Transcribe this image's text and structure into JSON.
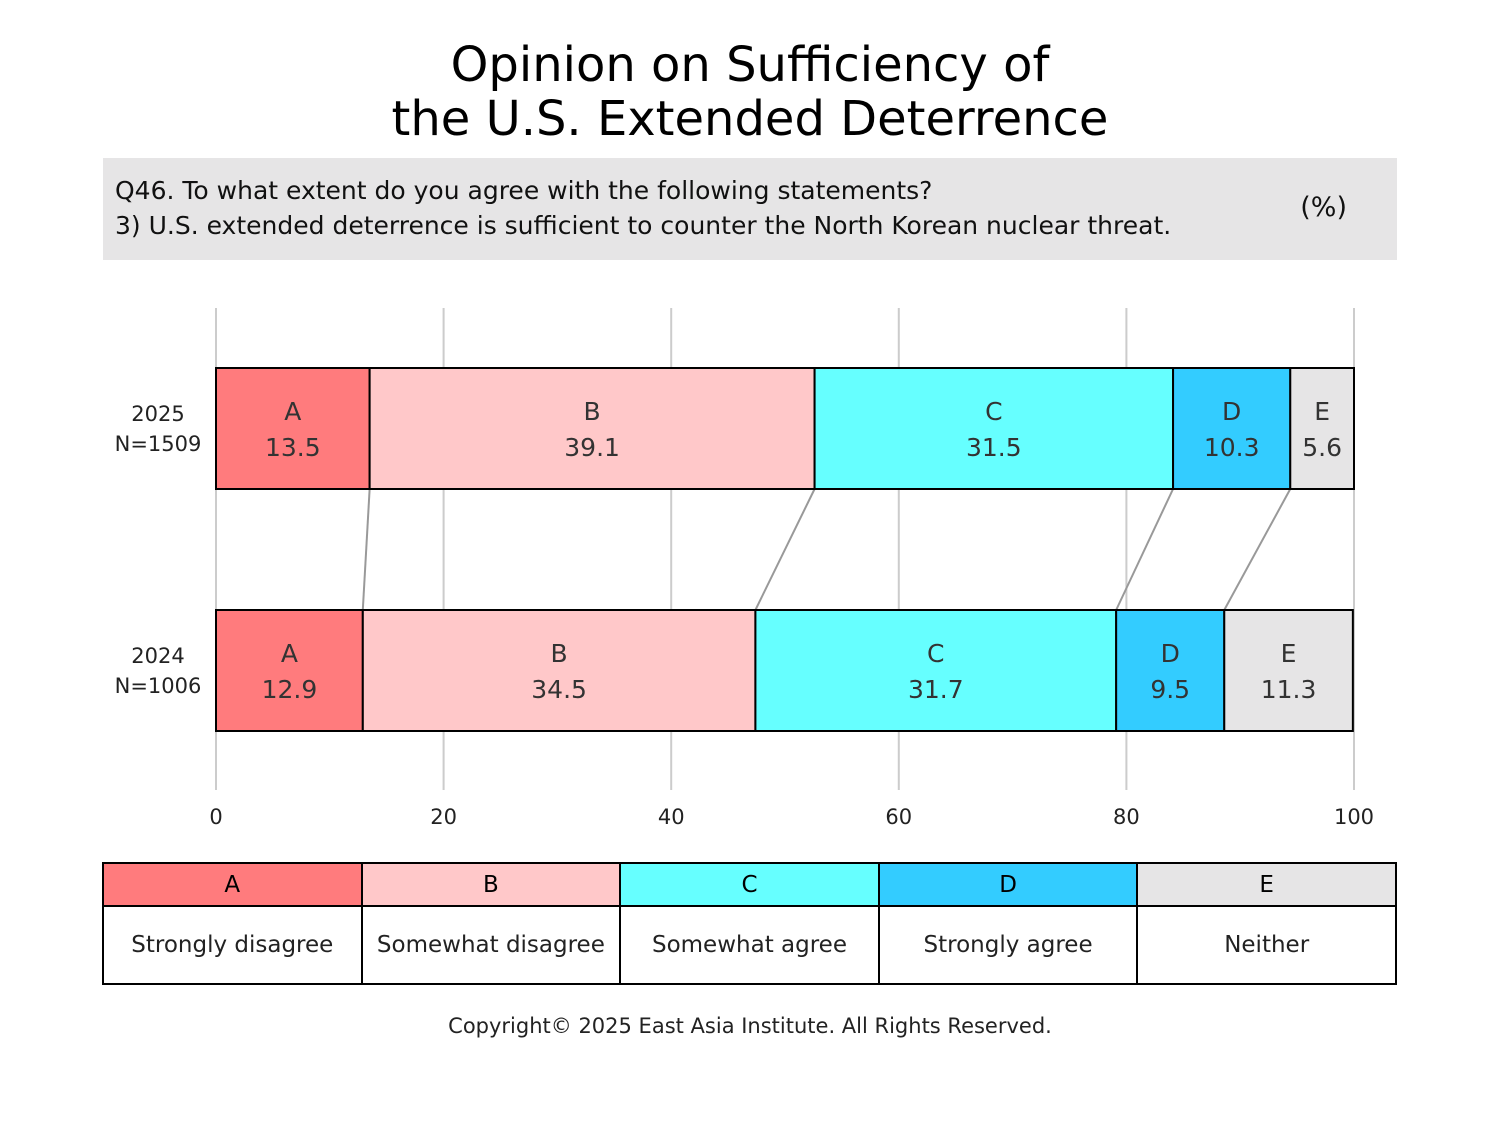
{
  "title_line1": "Opinion on Sufficiency of",
  "title_line2": "the U.S. Extended Deterrence",
  "question": {
    "line1": "Q46. To what extent do you agree with the following statements?",
    "line2": "3) U.S. extended deterrence is sufficient to counter the North Korean nuclear threat.",
    "unit": "(%)"
  },
  "chart_data": {
    "type": "bar",
    "orientation": "horizontal",
    "stacked": true,
    "xlim": [
      0,
      100
    ],
    "xticks": [
      0,
      20,
      40,
      60,
      80,
      100
    ],
    "grid": "vertical",
    "connector_lines": true,
    "categories": [
      {
        "year": "2025",
        "n": "N=1509"
      },
      {
        "year": "2024",
        "n": "N=1006"
      }
    ],
    "series": [
      {
        "name": "A",
        "label": "Strongly disagree",
        "color": "#ff7b7d",
        "values": [
          13.5,
          12.9
        ]
      },
      {
        "name": "B",
        "label": "Somewhat disagree",
        "color": "#ffc8c9",
        "values": [
          39.1,
          34.5
        ]
      },
      {
        "name": "C",
        "label": "Somewhat agree",
        "color": "#66ffff",
        "values": [
          31.5,
          31.7
        ]
      },
      {
        "name": "D",
        "label": "Strongly agree",
        "color": "#33ccff",
        "values": [
          10.3,
          9.5
        ]
      },
      {
        "name": "E",
        "label": "Neither",
        "color": "#e6e5e6",
        "values": [
          5.6,
          11.3
        ]
      }
    ]
  },
  "copyright": "Copyright© 2025 East Asia Institute. All Rights Reserved."
}
